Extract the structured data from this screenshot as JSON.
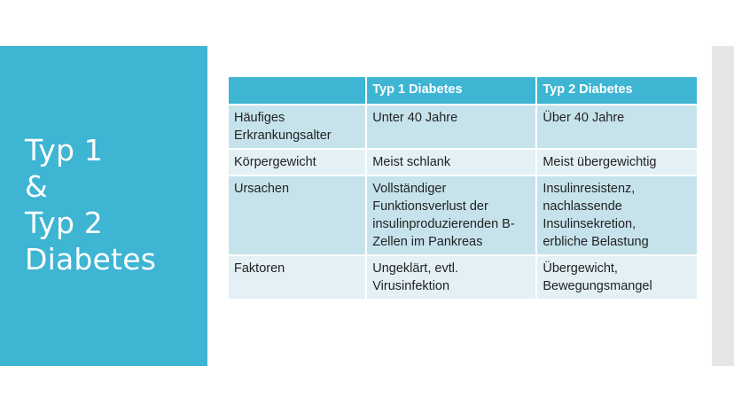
{
  "slide": {
    "title_lines": [
      "Typ 1",
      "&",
      "Typ 2",
      "Diabetes"
    ]
  },
  "table": {
    "headers": [
      "",
      "Typ 1 Diabetes",
      "Typ 2 Diabetes"
    ],
    "rows": [
      {
        "label_lines": [
          "Häufiges",
          "Erkrankungsalter"
        ],
        "typ1_lines": [
          "Unter 40 Jahre"
        ],
        "typ2_lines": [
          "Über 40 Jahre"
        ]
      },
      {
        "label_lines": [
          "Körpergewicht"
        ],
        "typ1_lines": [
          "Meist schlank"
        ],
        "typ2_lines": [
          "Meist übergewichtig"
        ]
      },
      {
        "label_lines": [
          "Ursachen"
        ],
        "typ1_lines": [
          "Vollständiger",
          "Funktionsverlust der",
          "insulinproduzierenden B-",
          "Zellen im Pankreas"
        ],
        "typ2_lines": [
          "Insulinresistenz,",
          "nachlassende",
          "Insulinsekretion,",
          "erbliche Belastung"
        ]
      },
      {
        "label_lines": [
          "Faktoren"
        ],
        "typ1_lines": [
          "Ungeklärt, evtl.",
          "Virusinfektion"
        ],
        "typ2_lines": [
          "Übergewicht,",
          "Bewegungsmangel"
        ]
      }
    ]
  },
  "colors": {
    "accent": "#3db5d3",
    "row_dark": "#c6e3ec",
    "row_light": "#e3f1f6",
    "side_bar": "#e6e6e6"
  }
}
